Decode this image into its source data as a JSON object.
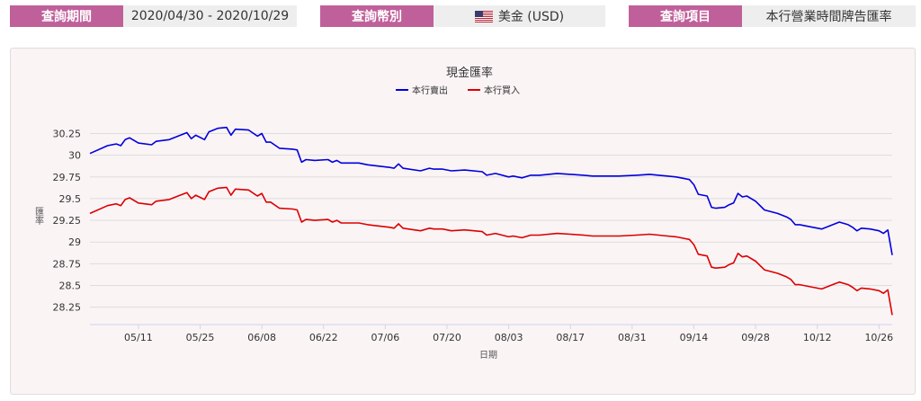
{
  "query": {
    "period_label": "查詢期間",
    "period_value": "2020/04/30 - 2020/10/29",
    "currency_label": "查詢幣別",
    "currency_value": "美金 (USD)",
    "currency_flag_icon": "us-flag-icon",
    "item_label": "查詢項目",
    "item_value": "本行營業時間牌告匯率"
  },
  "colors": {
    "label_bg": "#c0609a",
    "sell": "#0000dd",
    "buy": "#dd0000"
  },
  "chart_data": {
    "type": "line",
    "title": "現金匯率",
    "xlabel": "日期",
    "ylabel": "匯率",
    "ylim": [
      28.05,
      30.4
    ],
    "yticks": [
      28.25,
      28.5,
      28.75,
      29,
      29.25,
      29.5,
      29.75,
      30,
      30.25
    ],
    "ytick_labels": [
      "28.25",
      "28.5",
      "28.75",
      "29",
      "29.25",
      "29.5",
      "29.75",
      "30",
      "30.25"
    ],
    "x_start": "04/30",
    "x_end": "10/29",
    "xtick_labels": [
      "05/11",
      "05/25",
      "06/08",
      "06/22",
      "07/06",
      "07/20",
      "08/03",
      "08/17",
      "08/31",
      "09/14",
      "09/28",
      "10/12",
      "10/26"
    ],
    "grid": true,
    "legend_position": "top-center",
    "series": [
      {
        "name": "本行賣出",
        "color": "#0000dd",
        "points": [
          [
            "04/30",
            30.02
          ],
          [
            "05/04",
            30.11
          ],
          [
            "05/06",
            30.13
          ],
          [
            "05/07",
            30.11
          ],
          [
            "05/08",
            30.18
          ],
          [
            "05/09",
            30.2
          ],
          [
            "05/11",
            30.14
          ],
          [
            "05/14",
            30.12
          ],
          [
            "05/15",
            30.16
          ],
          [
            "05/18",
            30.18
          ],
          [
            "05/20",
            30.22
          ],
          [
            "05/22",
            30.26
          ],
          [
            "05/23",
            30.19
          ],
          [
            "05/24",
            30.23
          ],
          [
            "05/26",
            30.18
          ],
          [
            "05/27",
            30.27
          ],
          [
            "05/29",
            30.31
          ],
          [
            "05/31",
            30.32
          ],
          [
            "06/01",
            30.23
          ],
          [
            "06/02",
            30.3
          ],
          [
            "06/05",
            30.29
          ],
          [
            "06/07",
            30.22
          ],
          [
            "06/08",
            30.25
          ],
          [
            "06/09",
            30.15
          ],
          [
            "06/10",
            30.15
          ],
          [
            "06/12",
            30.08
          ],
          [
            "06/15",
            30.07
          ],
          [
            "06/16",
            30.06
          ],
          [
            "06/17",
            29.92
          ],
          [
            "06/18",
            29.95
          ],
          [
            "06/20",
            29.94
          ],
          [
            "06/23",
            29.95
          ],
          [
            "06/24",
            29.92
          ],
          [
            "06/25",
            29.94
          ],
          [
            "06/26",
            29.91
          ],
          [
            "06/30",
            29.91
          ],
          [
            "07/02",
            29.89
          ],
          [
            "07/07",
            29.86
          ],
          [
            "07/08",
            29.85
          ],
          [
            "07/09",
            29.9
          ],
          [
            "07/10",
            29.85
          ],
          [
            "07/14",
            29.82
          ],
          [
            "07/16",
            29.85
          ],
          [
            "07/17",
            29.84
          ],
          [
            "07/19",
            29.84
          ],
          [
            "07/21",
            29.82
          ],
          [
            "07/24",
            29.83
          ],
          [
            "07/28",
            29.81
          ],
          [
            "07/29",
            29.77
          ],
          [
            "07/31",
            29.79
          ],
          [
            "08/03",
            29.75
          ],
          [
            "08/04",
            29.76
          ],
          [
            "08/06",
            29.74
          ],
          [
            "08/08",
            29.77
          ],
          [
            "08/10",
            29.77
          ],
          [
            "08/14",
            29.79
          ],
          [
            "08/17",
            29.78
          ],
          [
            "08/20",
            29.77
          ],
          [
            "08/22",
            29.76
          ],
          [
            "08/28",
            29.76
          ],
          [
            "09/01",
            29.77
          ],
          [
            "09/04",
            29.78
          ],
          [
            "09/06",
            29.77
          ],
          [
            "09/08",
            29.76
          ],
          [
            "09/10",
            29.75
          ],
          [
            "09/12",
            29.73
          ],
          [
            "09/13",
            29.72
          ],
          [
            "09/14",
            29.66
          ],
          [
            "09/15",
            29.55
          ],
          [
            "09/17",
            29.53
          ],
          [
            "09/18",
            29.4
          ],
          [
            "09/19",
            29.39
          ],
          [
            "09/21",
            29.4
          ],
          [
            "09/22",
            29.43
          ],
          [
            "09/23",
            29.45
          ],
          [
            "09/24",
            29.56
          ],
          [
            "09/25",
            29.52
          ],
          [
            "09/26",
            29.53
          ],
          [
            "09/28",
            29.47
          ],
          [
            "09/30",
            29.37
          ],
          [
            "10/03",
            29.33
          ],
          [
            "10/05",
            29.29
          ],
          [
            "10/06",
            29.26
          ],
          [
            "10/07",
            29.2
          ],
          [
            "10/08",
            29.2
          ],
          [
            "10/11",
            29.17
          ],
          [
            "10/13",
            29.15
          ],
          [
            "10/15",
            29.19
          ],
          [
            "10/17",
            29.23
          ],
          [
            "10/19",
            29.2
          ],
          [
            "10/20",
            29.17
          ],
          [
            "10/21",
            29.13
          ],
          [
            "10/22",
            29.16
          ],
          [
            "10/24",
            29.15
          ],
          [
            "10/26",
            29.13
          ],
          [
            "10/27",
            29.1
          ],
          [
            "10/28",
            29.14
          ],
          [
            "10/29",
            28.85
          ]
        ]
      },
      {
        "name": "本行買入",
        "color": "#dd0000",
        "points": [
          [
            "04/30",
            29.33
          ],
          [
            "05/04",
            29.42
          ],
          [
            "05/06",
            29.44
          ],
          [
            "05/07",
            29.42
          ],
          [
            "05/08",
            29.49
          ],
          [
            "05/09",
            29.51
          ],
          [
            "05/11",
            29.45
          ],
          [
            "05/14",
            29.43
          ],
          [
            "05/15",
            29.47
          ],
          [
            "05/18",
            29.49
          ],
          [
            "05/20",
            29.53
          ],
          [
            "05/22",
            29.57
          ],
          [
            "05/23",
            29.5
          ],
          [
            "05/24",
            29.54
          ],
          [
            "05/26",
            29.49
          ],
          [
            "05/27",
            29.58
          ],
          [
            "05/29",
            29.62
          ],
          [
            "05/31",
            29.63
          ],
          [
            "06/01",
            29.54
          ],
          [
            "06/02",
            29.61
          ],
          [
            "06/05",
            29.6
          ],
          [
            "06/07",
            29.53
          ],
          [
            "06/08",
            29.56
          ],
          [
            "06/09",
            29.46
          ],
          [
            "06/10",
            29.46
          ],
          [
            "06/12",
            29.39
          ],
          [
            "06/15",
            29.38
          ],
          [
            "06/16",
            29.37
          ],
          [
            "06/17",
            29.23
          ],
          [
            "06/18",
            29.26
          ],
          [
            "06/20",
            29.25
          ],
          [
            "06/23",
            29.26
          ],
          [
            "06/24",
            29.23
          ],
          [
            "06/25",
            29.25
          ],
          [
            "06/26",
            29.22
          ],
          [
            "06/30",
            29.22
          ],
          [
            "07/02",
            29.2
          ],
          [
            "07/07",
            29.17
          ],
          [
            "07/08",
            29.16
          ],
          [
            "07/09",
            29.21
          ],
          [
            "07/10",
            29.16
          ],
          [
            "07/14",
            29.13
          ],
          [
            "07/16",
            29.16
          ],
          [
            "07/17",
            29.15
          ],
          [
            "07/19",
            29.15
          ],
          [
            "07/21",
            29.13
          ],
          [
            "07/24",
            29.14
          ],
          [
            "07/28",
            29.12
          ],
          [
            "07/29",
            29.08
          ],
          [
            "07/31",
            29.1
          ],
          [
            "08/03",
            29.06
          ],
          [
            "08/04",
            29.07
          ],
          [
            "08/06",
            29.05
          ],
          [
            "08/08",
            29.08
          ],
          [
            "08/10",
            29.08
          ],
          [
            "08/14",
            29.1
          ],
          [
            "08/17",
            29.09
          ],
          [
            "08/20",
            29.08
          ],
          [
            "08/22",
            29.07
          ],
          [
            "08/28",
            29.07
          ],
          [
            "09/01",
            29.08
          ],
          [
            "09/04",
            29.09
          ],
          [
            "09/06",
            29.08
          ],
          [
            "09/08",
            29.07
          ],
          [
            "09/10",
            29.06
          ],
          [
            "09/12",
            29.04
          ],
          [
            "09/13",
            29.03
          ],
          [
            "09/14",
            28.97
          ],
          [
            "09/15",
            28.86
          ],
          [
            "09/17",
            28.84
          ],
          [
            "09/18",
            28.71
          ],
          [
            "09/19",
            28.7
          ],
          [
            "09/21",
            28.71
          ],
          [
            "09/22",
            28.74
          ],
          [
            "09/23",
            28.76
          ],
          [
            "09/24",
            28.87
          ],
          [
            "09/25",
            28.83
          ],
          [
            "09/26",
            28.84
          ],
          [
            "09/28",
            28.78
          ],
          [
            "09/30",
            28.68
          ],
          [
            "10/03",
            28.64
          ],
          [
            "10/05",
            28.6
          ],
          [
            "10/06",
            28.57
          ],
          [
            "10/07",
            28.51
          ],
          [
            "10/08",
            28.51
          ],
          [
            "10/11",
            28.48
          ],
          [
            "10/13",
            28.46
          ],
          [
            "10/15",
            28.5
          ],
          [
            "10/17",
            28.54
          ],
          [
            "10/19",
            28.51
          ],
          [
            "10/20",
            28.48
          ],
          [
            "10/21",
            28.44
          ],
          [
            "10/22",
            28.47
          ],
          [
            "10/24",
            28.46
          ],
          [
            "10/26",
            28.44
          ],
          [
            "10/27",
            28.41
          ],
          [
            "10/28",
            28.45
          ],
          [
            "10/29",
            28.16
          ]
        ]
      }
    ]
  }
}
